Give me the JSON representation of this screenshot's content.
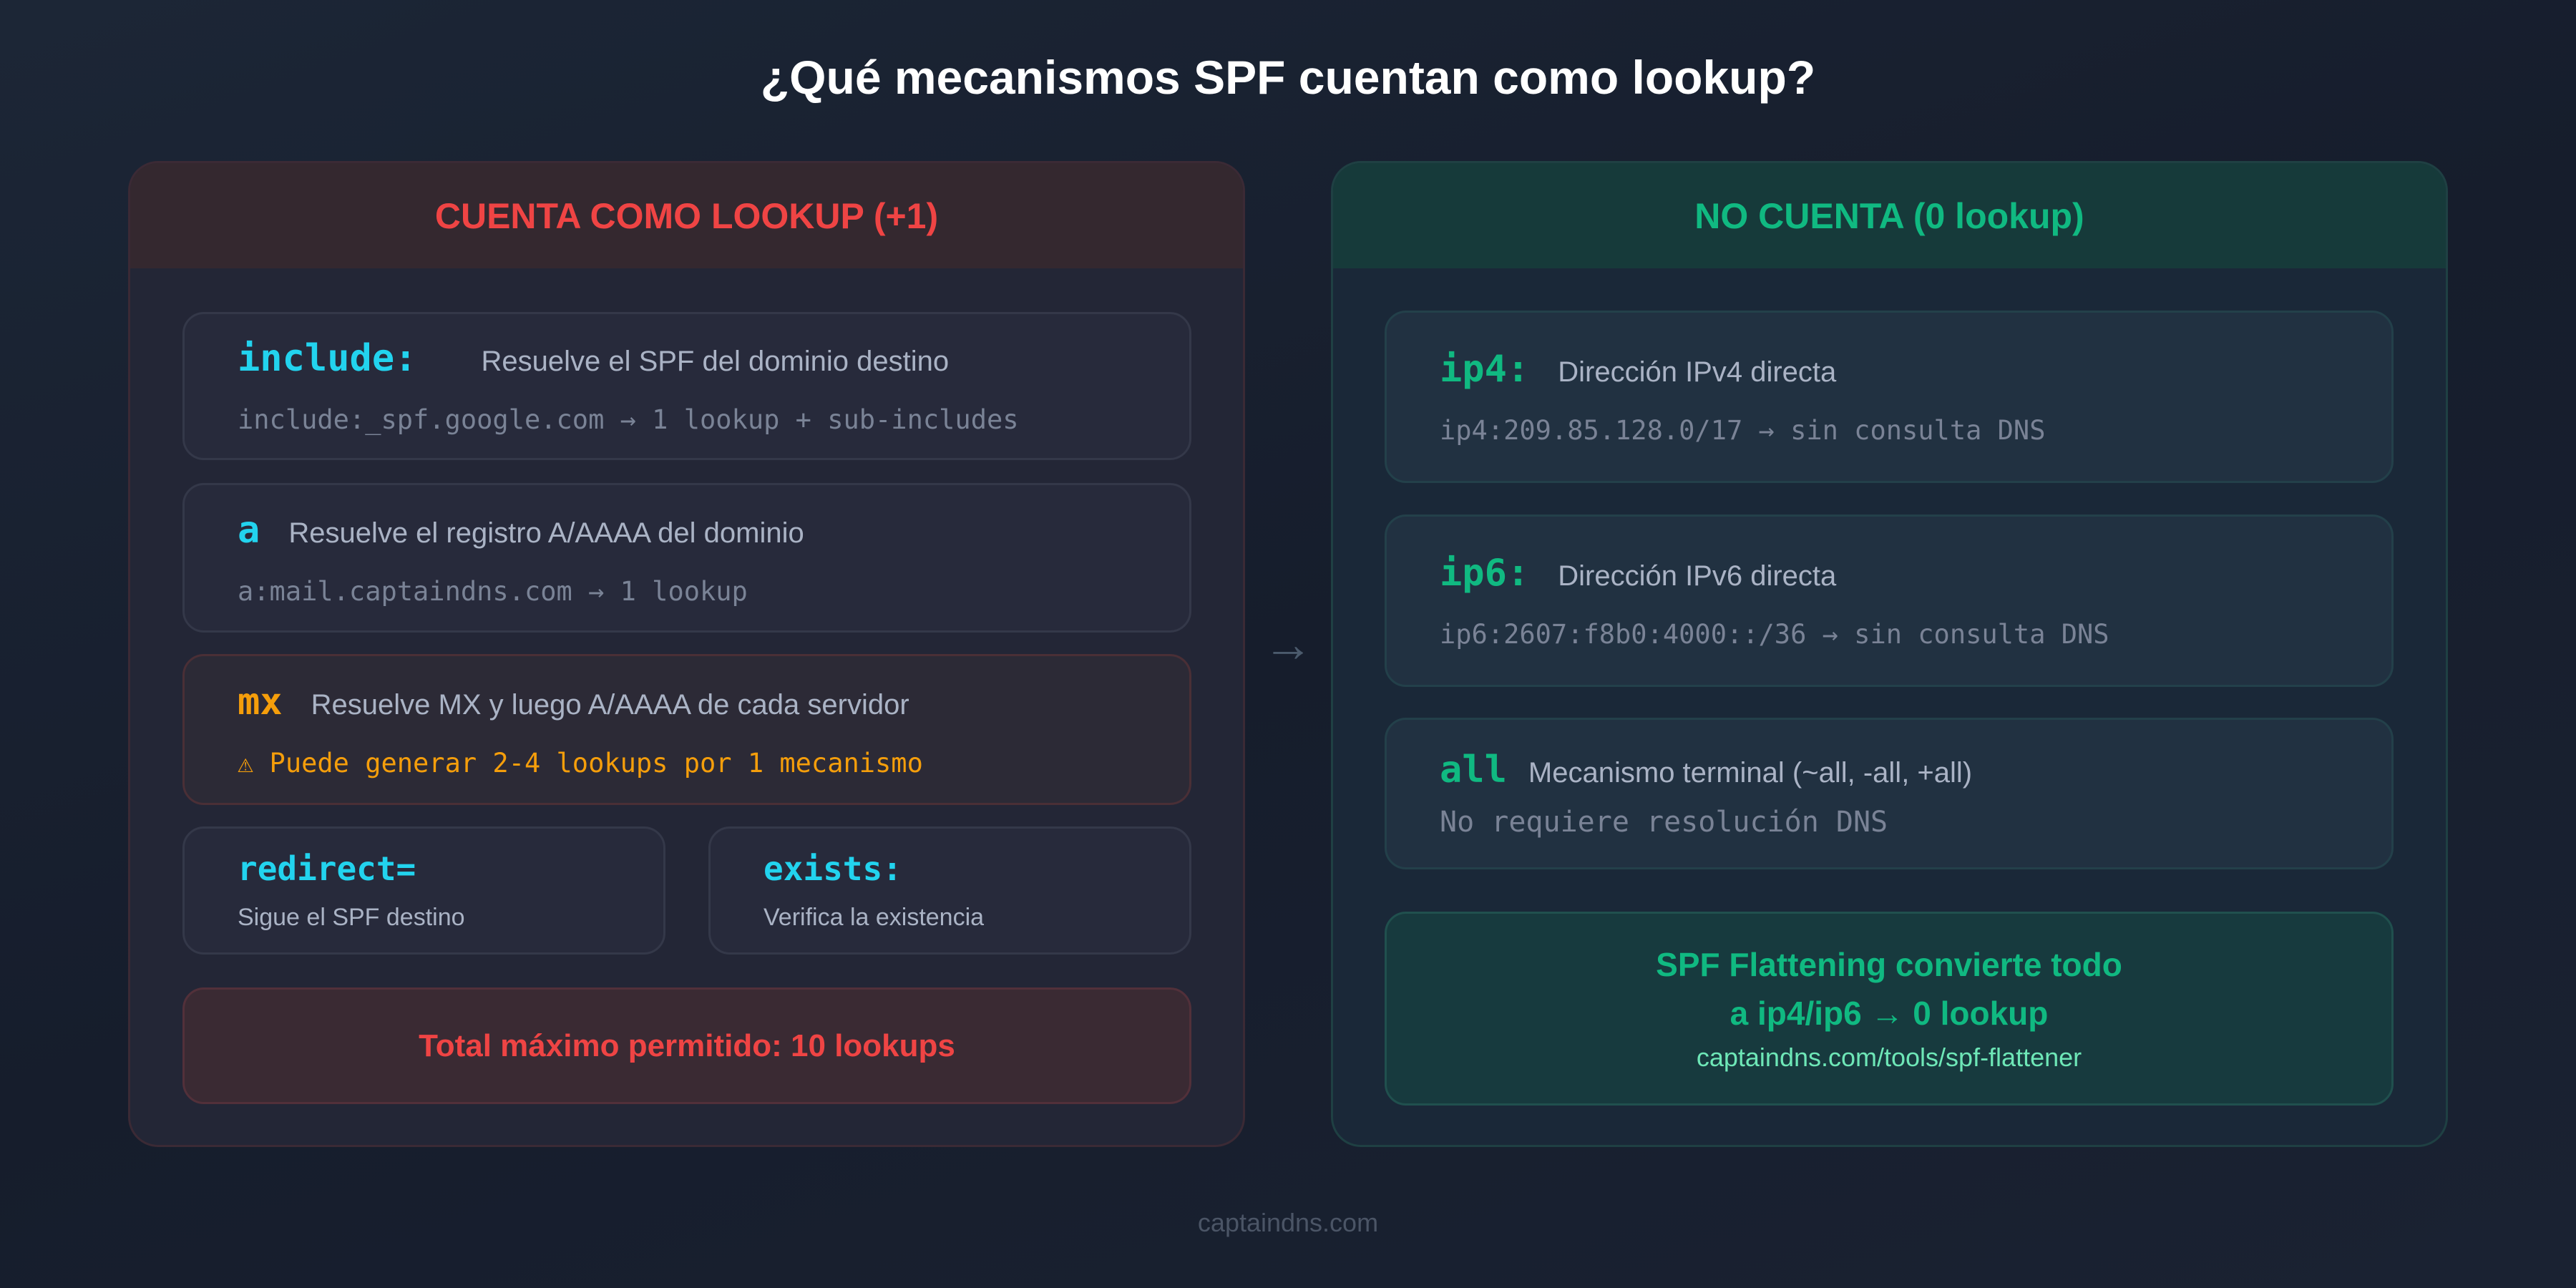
{
  "title": "¿Qué mecanismos SPF cuentan como lookup?",
  "left": {
    "header": "CUENTA COMO LOOKUP (+1)",
    "cards": [
      {
        "keyword": "include:",
        "description": "Resuelve el SPF del dominio destino",
        "example": "include:_spf.google.com → 1 lookup + sub-includes"
      },
      {
        "keyword": "a",
        "description": "Resuelve el registro A/AAAA del dominio",
        "example": "a:mail.captaindns.com → 1 lookup"
      },
      {
        "keyword": "mx",
        "description": "Resuelve MX y luego A/AAAA de cada servidor",
        "example": "⚠ Puede generar 2-4 lookups por 1 mecanismo"
      }
    ],
    "small_cards": [
      {
        "keyword": "redirect=",
        "description": "Sigue el SPF destino"
      },
      {
        "keyword": "exists:",
        "description": "Verifica la existencia"
      }
    ],
    "total": "Total máximo permitido: 10 lookups"
  },
  "arrow": "→",
  "right": {
    "header": "NO CUENTA (0 lookup)",
    "cards": [
      {
        "keyword": "ip4:",
        "description": "Dirección IPv4 directa",
        "example": "ip4:209.85.128.0/17 → sin consulta DNS"
      },
      {
        "keyword": "ip6:",
        "description": "Dirección IPv6 directa",
        "example": "ip6:2607:f8b0:4000::/36 → sin consulta DNS"
      },
      {
        "keyword": "all",
        "description": "Mecanismo terminal (~all, -all, +all)",
        "example": "No requiere resolución DNS"
      }
    ],
    "flattening": {
      "line1": "SPF Flattening convierte todo",
      "line2": "a ip4/ip6 → 0 lookup",
      "link": "captaindns.com/tools/spf-flattener"
    }
  },
  "footer": "captaindns.com",
  "colors": {
    "red": "#ef4444",
    "green": "#10b981",
    "cyan": "#22d3ee",
    "orange": "#f59e0b",
    "background": "#171e2d"
  }
}
